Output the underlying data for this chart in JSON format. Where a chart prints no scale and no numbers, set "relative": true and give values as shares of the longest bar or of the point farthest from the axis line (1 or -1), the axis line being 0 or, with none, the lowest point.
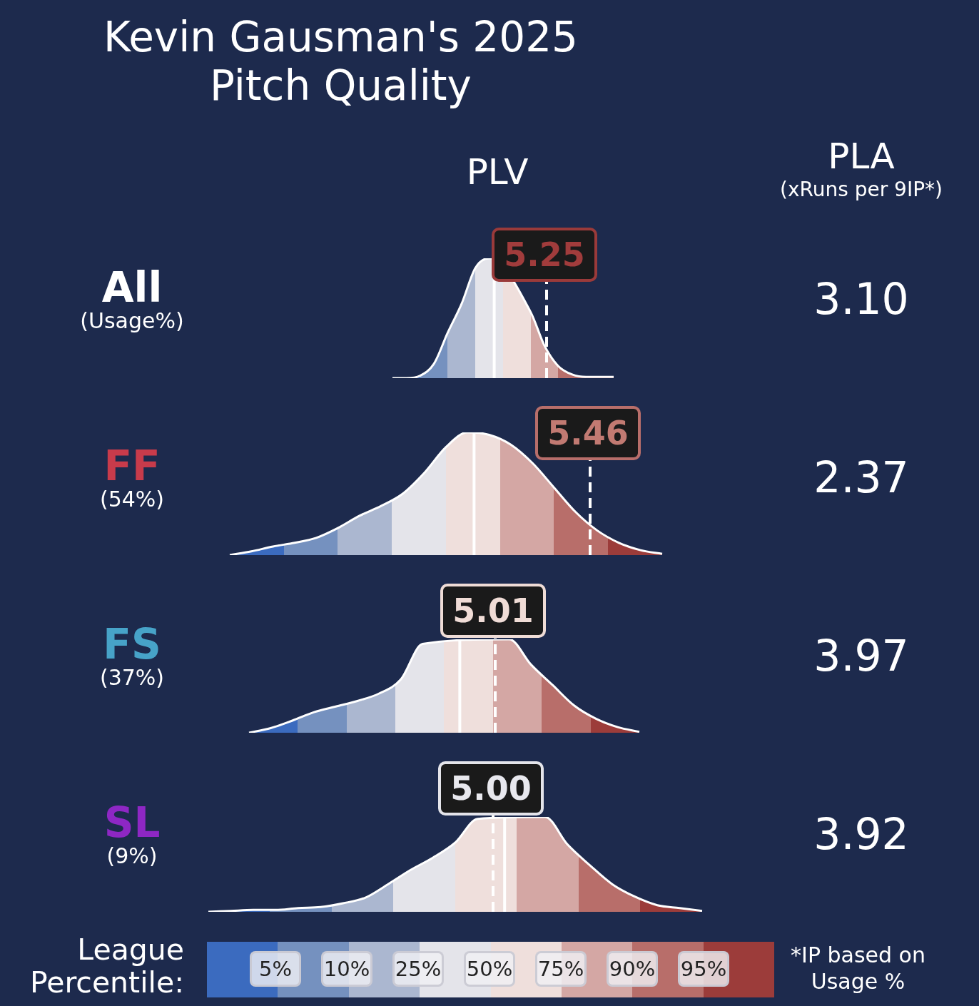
{
  "chart_data": [
    {
      "type": "other",
      "title": "Kevin Gausman's 2025 Pitch Quality",
      "annotations": [
        "PLV",
        "PLA",
        "(xRuns per 9IP*)",
        "(Usage%)"
      ]
    },
    {
      "type": "area",
      "title": "All",
      "relative": true,
      "legend": false,
      "categories": [
        null,
        null,
        null,
        null,
        null,
        null,
        null,
        null,
        null,
        null,
        null,
        null,
        null,
        null,
        null,
        null,
        null
      ],
      "series": [
        {
          "color": "#ffffff",
          "values": [
            0,
            0,
            0.02,
            0.12,
            0.38,
            0.62,
            0.92,
            1.0,
            null,
            null,
            0.55,
            0.27,
            0.1,
            0.03,
            0.01,
            0.01,
            0.01
          ]
        }
      ],
      "annotations": [
        "5.25",
        "3.10"
      ]
    },
    {
      "type": "area",
      "title": "FF",
      "subtitle": "(54%)",
      "relative": true,
      "legend": false,
      "categories": [
        null,
        null,
        null,
        null,
        null,
        null,
        null,
        null,
        null,
        null,
        null,
        null,
        null,
        null,
        null,
        null,
        null,
        null,
        null,
        null,
        null
      ],
      "series": [
        {
          "color": "#ffffff",
          "values": [
            0,
            0.03,
            0.07,
            0.1,
            0.14,
            0.22,
            0.32,
            0.4,
            0.5,
            0.67,
            0.88,
            1.0,
            0.98,
            0.9,
            0.75,
            0.55,
            0.35,
            0.2,
            0.1,
            0.04,
            0.01
          ]
        }
      ],
      "annotations": [
        "5.46",
        "2.37"
      ]
    },
    {
      "type": "area",
      "title": "FS",
      "subtitle": "(37%)",
      "relative": true,
      "legend": false,
      "categories": [
        null,
        null,
        null,
        null,
        null,
        null,
        null,
        null,
        null,
        null,
        null,
        null,
        null,
        null,
        null,
        null,
        null,
        null,
        null
      ],
      "series": [
        {
          "color": "#ffffff",
          "values": [
            0,
            0.05,
            0.13,
            0.22,
            0.28,
            0.34,
            0.42,
            0.57,
            0.95,
            null,
            null,
            null,
            1.0,
            0.73,
            0.51,
            0.29,
            0.15,
            0.06,
            0.01
          ]
        }
      ],
      "annotations": [
        "5.01",
        "3.97"
      ]
    },
    {
      "type": "area",
      "title": "SL",
      "subtitle": "(9%)",
      "relative": true,
      "legend": false,
      "categories": [
        null,
        null,
        null,
        null,
        null,
        null,
        null,
        null,
        null,
        null,
        null,
        null,
        null,
        null,
        null,
        null,
        null,
        null,
        null,
        null,
        null,
        null,
        null
      ],
      "series": [
        {
          "color": "#ffffff",
          "values": [
            0,
            0.01,
            0.02,
            0.02,
            0.04,
            0.05,
            0.09,
            0.15,
            0.29,
            0.44,
            0.57,
            0.73,
            0.98,
            null,
            null,
            1.0,
            0.71,
            0.49,
            0.29,
            0.16,
            0.07,
            0.04,
            0.01
          ]
        }
      ],
      "annotations": [
        "5.00",
        "3.92"
      ]
    },
    {
      "type": "other",
      "title": "League Percentile:",
      "categories": [
        "5%",
        "10%",
        "25%",
        "50%",
        "75%",
        "90%",
        "95%"
      ],
      "annotations": [
        "*IP based on Usage %"
      ]
    }
  ]
}
